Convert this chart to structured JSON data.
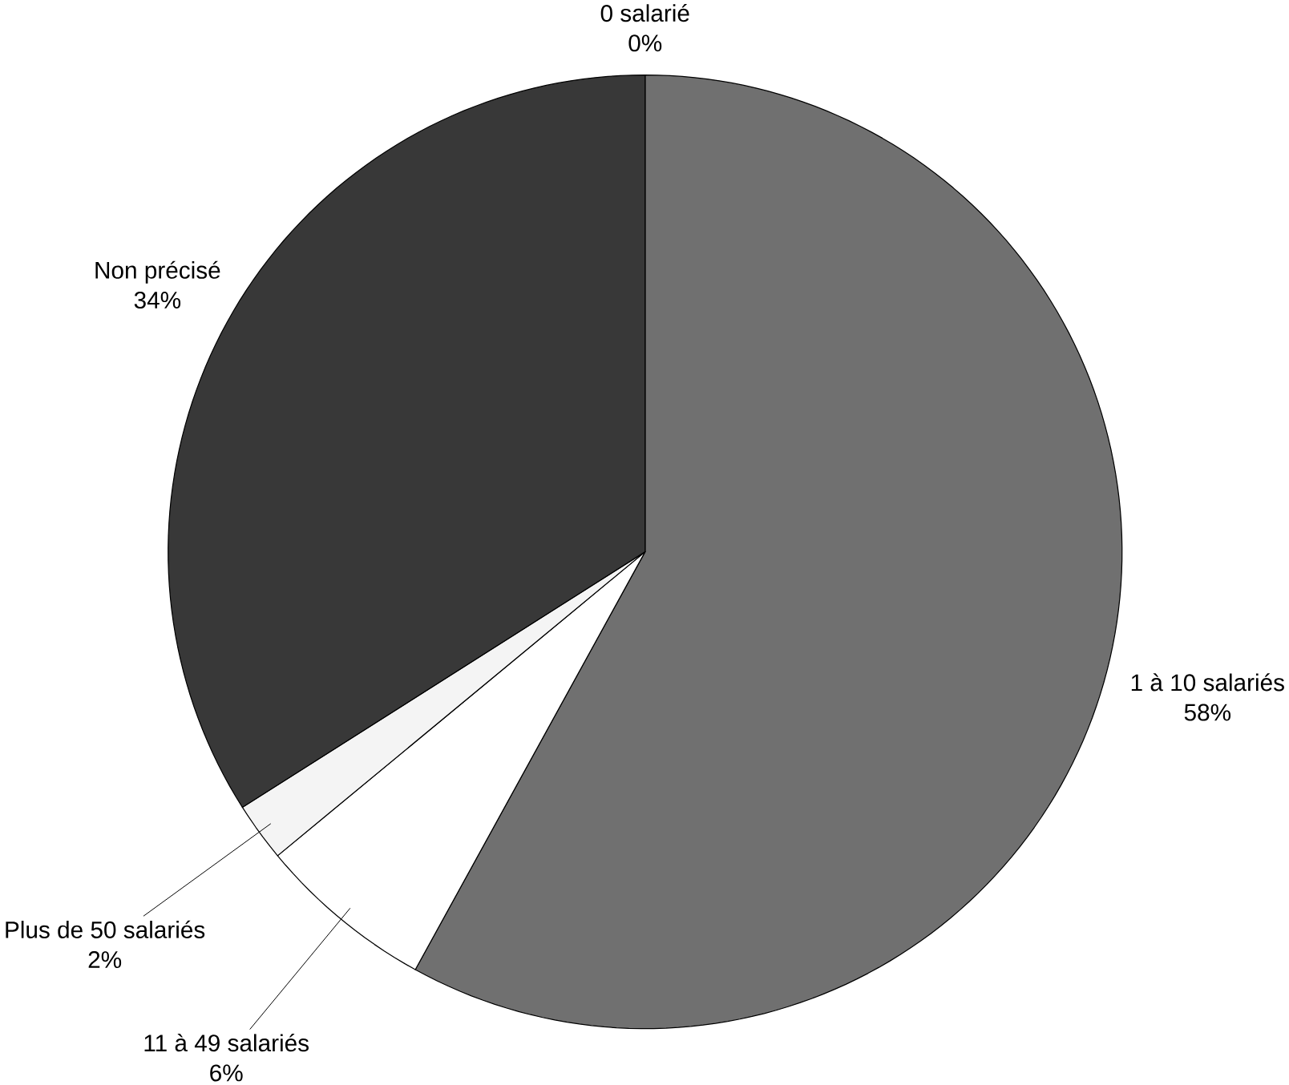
{
  "chart_data": {
    "type": "pie",
    "categories": [
      "0 salarié",
      "1 à 10 salariés",
      "11 à 49 salariés",
      "Plus de 50 salariés",
      "Non précisé"
    ],
    "values": [
      0,
      58,
      6,
      2,
      34
    ],
    "value_labels": [
      "0%",
      "58%",
      "6%",
      "2%",
      "34%"
    ],
    "colors": [
      "#ffffff",
      "#707070",
      "#ffffff",
      "#f4f4f4",
      "#383838"
    ]
  }
}
